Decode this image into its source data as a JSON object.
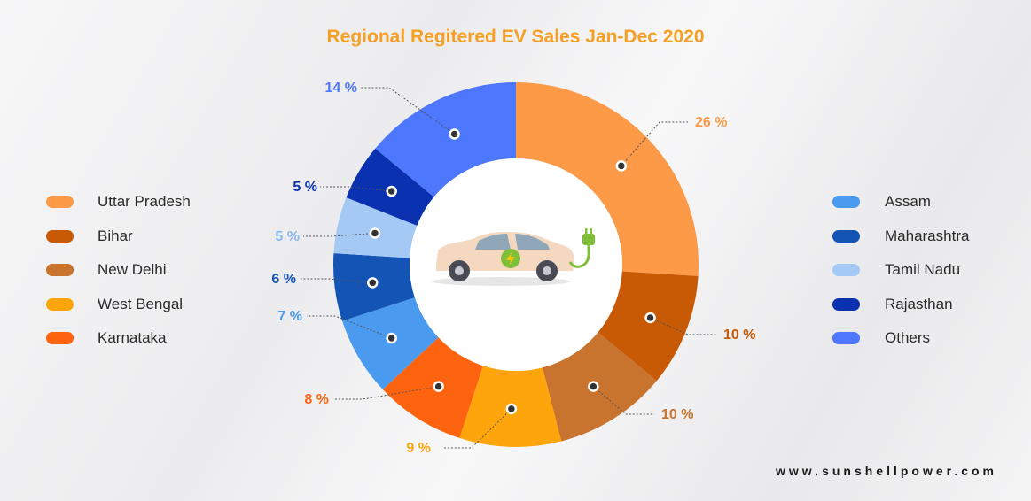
{
  "title": "Regional Regitered EV Sales Jan-Dec 2020",
  "website": "www.sunshellpower.com",
  "chart_data": {
    "type": "pie",
    "style": "donut",
    "title": "Regional Regitered EV Sales Jan-Dec 2020",
    "start_angle_deg": 0,
    "direction": "clockwise",
    "legend_placement": "left and right",
    "slices": [
      {
        "label": "Uttar Pradesh",
        "value": 26,
        "value_label": "26 %",
        "color": "#fd9a48"
      },
      {
        "label": "Bihar",
        "value": 10,
        "value_label": "10 %",
        "color": "#c85a05"
      },
      {
        "label": "New Delhi",
        "value": 10,
        "value_label": "10 %",
        "color": "#c8742f"
      },
      {
        "label": "West Bengal",
        "value": 9,
        "value_label": "9 %",
        "color": "#fea50c"
      },
      {
        "label": "Karnataka",
        "value": 8,
        "value_label": "8 %",
        "color": "#fe6410"
      },
      {
        "label": "Assam",
        "value": 7,
        "value_label": "7 %",
        "color": "#4a9af0"
      },
      {
        "label": "Maharashtra",
        "value": 6,
        "value_label": "6 %",
        "color": "#1454b4"
      },
      {
        "label": "Tamil Nadu",
        "value": 5,
        "value_label": "5 %",
        "color": "#a5c9f5"
      },
      {
        "label": "Rajasthan",
        "value": 5,
        "value_label": "5 %",
        "color": "#0a32b0"
      },
      {
        "label": "Others",
        "value": 14,
        "value_label": "14 %",
        "color": "#4d77fc"
      }
    ]
  },
  "legend_left": [
    {
      "label": "Uttar Pradesh",
      "color": "#fd9a48"
    },
    {
      "label": "Bihar",
      "color": "#c85a05"
    },
    {
      "label": "New Delhi",
      "color": "#c8742f"
    },
    {
      "label": "West Bengal",
      "color": "#fea50c"
    },
    {
      "label": "Karnataka",
      "color": "#fe6410"
    }
  ],
  "legend_right": [
    {
      "label": "Assam",
      "color": "#4a9af0"
    },
    {
      "label": "Maharashtra",
      "color": "#1454b4"
    },
    {
      "label": "Tamil Nadu",
      "color": "#a5c9f5"
    },
    {
      "label": "Rajasthan",
      "color": "#0a32b0"
    },
    {
      "label": "Others",
      "color": "#4d77fc"
    }
  ],
  "center_icons": [
    "car-icon",
    "charging-plug-icon"
  ]
}
